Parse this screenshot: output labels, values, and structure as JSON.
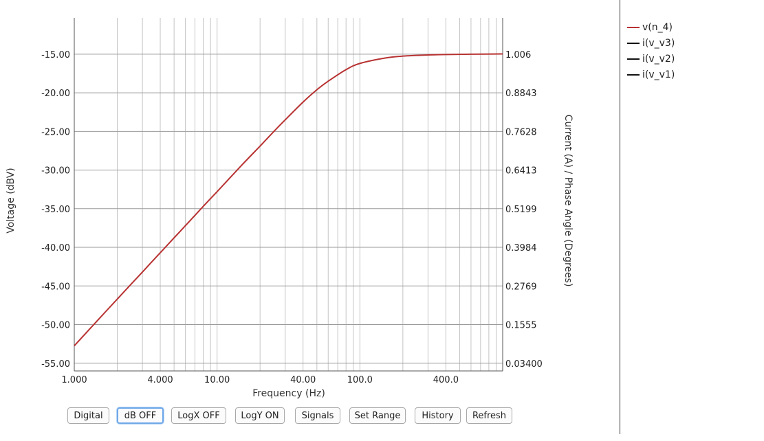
{
  "chart_data": {
    "type": "line",
    "xlabel": "Frequency (Hz)",
    "ylabel": "Voltage (dBV)",
    "y2label": "Current (A) / Phase Angle (Degrees)",
    "xscale": "log",
    "xlim": [
      1,
      1000
    ],
    "ylim": [
      -56,
      -10.3
    ],
    "y_ticks": [
      -55,
      -50,
      -45,
      -40,
      -35,
      -30,
      -25,
      -20,
      -15
    ],
    "y_tick_labels": [
      "-55.00",
      "-50.00",
      "-45.00",
      "-40.00",
      "-35.00",
      "-30.00",
      "-25.00",
      "-20.00",
      "-15.00"
    ],
    "x_tick_values": [
      1,
      4,
      10,
      40,
      100,
      400
    ],
    "x_tick_labels": [
      "1.000",
      "4.000",
      "10.00",
      "40.00",
      "100.0",
      "400.0"
    ],
    "y2_tick_labels": [
      "0.03400",
      "0.1555",
      "0.2769",
      "0.3984",
      "0.5199",
      "0.6413",
      "0.7628",
      "0.8843",
      "1.006"
    ],
    "grid": true,
    "legend_position": "right",
    "series": [
      {
        "name": "v(n_4)",
        "color": "#b83232",
        "axis": "left",
        "x": [
          1,
          1.5,
          2,
          3,
          4,
          6,
          8,
          10,
          15,
          20,
          25,
          30,
          40,
          50,
          60,
          80,
          100,
          150,
          200,
          300,
          400,
          600,
          1000
        ],
        "y": [
          -52.75,
          -49.2,
          -46.7,
          -43.2,
          -40.7,
          -37.2,
          -34.7,
          -32.8,
          -29.3,
          -26.9,
          -25.0,
          -23.5,
          -21.2,
          -19.6,
          -18.5,
          -17.0,
          -16.2,
          -15.5,
          -15.25,
          -15.1,
          -15.05,
          -15.0,
          -14.97
        ]
      },
      {
        "name": "i(v_v3)",
        "color": "#111111",
        "axis": "right",
        "x": [],
        "y": []
      },
      {
        "name": "i(v_v2)",
        "color": "#111111",
        "axis": "right",
        "x": [],
        "y": []
      },
      {
        "name": "i(v_v1)",
        "color": "#111111",
        "axis": "right",
        "x": [],
        "y": []
      }
    ]
  },
  "toolbar": {
    "buttons": [
      "Digital",
      "dB OFF",
      "LogX OFF",
      "LogY ON",
      "Signals",
      "Set Range",
      "History",
      "Refresh"
    ],
    "focused": "dB OFF"
  }
}
